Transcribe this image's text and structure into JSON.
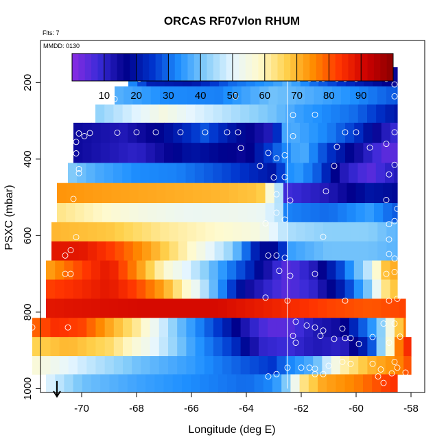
{
  "chart_data": {
    "type": "heatmap",
    "title": "ORCAS RF07vlon RHUM",
    "annotations": {
      "flts": "Flts: 7",
      "mmdd": "MMDD: 0130"
    },
    "xlabel": "Longitude (deg E)",
    "ylabel": "PSXC (mbar)",
    "xlim": [
      -71.5,
      -57.5
    ],
    "ylim": [
      1010,
      90
    ],
    "x_ticks": [
      -70,
      -68,
      -66,
      -64,
      -62,
      -60,
      -58
    ],
    "y_ticks": [
      200,
      400,
      600,
      800,
      1000
    ],
    "colorbar": {
      "range": [
        0,
        100
      ],
      "ticks": [
        10,
        20,
        30,
        40,
        50,
        60,
        70,
        80,
        90
      ],
      "stops": [
        "#8a2be2",
        "#3a2bd8",
        "#00008b",
        "#0033cc",
        "#1e90ff",
        "#87cefa",
        "#e6f6ff",
        "#fffacd",
        "#ffd24d",
        "#ff8c00",
        "#ff3300",
        "#cc0000",
        "#8b0000"
      ]
    },
    "vertical_marker_lon": -62.5,
    "marker_arrow_lon": -70.9,
    "bin_width_deg": 0.33,
    "rows": [
      {
        "p": 185,
        "lon_start": -68.3,
        "lon_end": -58.5,
        "anchors": [
          [
            -68.3,
            35
          ],
          [
            -67.5,
            22
          ],
          [
            -66,
            20
          ],
          [
            -64.5,
            30
          ],
          [
            -63,
            35
          ],
          [
            -62.5,
            38
          ],
          [
            -61.5,
            30
          ],
          [
            -60,
            22
          ],
          [
            -58.5,
            15
          ]
        ]
      },
      {
        "p": 235,
        "lon_start": -68.8,
        "lon_end": -58.5,
        "anchors": [
          [
            -68.8,
            38
          ],
          [
            -67,
            33
          ],
          [
            -65,
            32
          ],
          [
            -63,
            40
          ],
          [
            -62,
            38
          ],
          [
            -60,
            33
          ],
          [
            -58.5,
            28
          ]
        ]
      },
      {
        "p": 280,
        "lon_start": -69.5,
        "lon_end": -58.5,
        "anchors": [
          [
            -69.5,
            42
          ],
          [
            -68.5,
            47
          ],
          [
            -67,
            55
          ],
          [
            -66,
            50
          ],
          [
            -64.5,
            45
          ],
          [
            -63,
            40
          ],
          [
            -62,
            35
          ],
          [
            -60,
            30
          ],
          [
            -58.5,
            20
          ]
        ]
      },
      {
        "p": 330,
        "lon_start": -70.3,
        "lon_end": -58.5,
        "anchors": [
          [
            -70.3,
            15
          ],
          [
            -68.5,
            12
          ],
          [
            -67,
            18
          ],
          [
            -65.5,
            28
          ],
          [
            -64.5,
            20
          ],
          [
            -63.2,
            12
          ],
          [
            -62.5,
            38
          ],
          [
            -61,
            32
          ],
          [
            -60,
            25
          ],
          [
            -59,
            12
          ],
          [
            -58.5,
            8
          ]
        ]
      },
      {
        "p": 385,
        "lon_start": -70.3,
        "lon_end": -58.5,
        "anchors": [
          [
            -70.3,
            15
          ],
          [
            -68,
            10
          ],
          [
            -66,
            20
          ],
          [
            -64,
            15
          ],
          [
            -63,
            28
          ],
          [
            -62,
            38
          ],
          [
            -61,
            25
          ],
          [
            -60,
            15
          ],
          [
            -59,
            5
          ],
          [
            -58.5,
            5
          ]
        ]
      },
      {
        "p": 435,
        "lon_start": -70.5,
        "lon_end": -58.5,
        "anchors": [
          [
            -70.5,
            42
          ],
          [
            -69.5,
            37
          ],
          [
            -68,
            33
          ],
          [
            -66.5,
            32
          ],
          [
            -64.5,
            26
          ],
          [
            -63,
            20
          ],
          [
            -62.3,
            36
          ],
          [
            -61.5,
            30
          ],
          [
            -60.5,
            12
          ],
          [
            -59.5,
            5
          ],
          [
            -58.5,
            12
          ]
        ]
      },
      {
        "p": 490,
        "lon_start": -70.9,
        "lon_end": -58.5,
        "anchors": [
          [
            -70.9,
            74
          ],
          [
            -68,
            72
          ],
          [
            -65,
            70
          ],
          [
            -63.5,
            68
          ],
          [
            -62.7,
            42
          ],
          [
            -62.5,
            8
          ],
          [
            -61,
            12
          ],
          [
            -59.5,
            20
          ],
          [
            -58.5,
            18
          ]
        ]
      },
      {
        "p": 540,
        "lon_start": -70.9,
        "lon_end": -58.5,
        "anchors": [
          [
            -70.9,
            63
          ],
          [
            -68,
            55
          ],
          [
            -66,
            52
          ],
          [
            -64.5,
            53
          ],
          [
            -63.5,
            52
          ],
          [
            -62.7,
            45
          ],
          [
            -62.5,
            32
          ],
          [
            -61,
            30
          ],
          [
            -59.5,
            35
          ],
          [
            -58.5,
            28
          ]
        ]
      },
      {
        "p": 590,
        "lon_start": -71.1,
        "lon_end": -58.5,
        "anchors": [
          [
            -71.1,
            70
          ],
          [
            -69,
            68
          ],
          [
            -67,
            62
          ],
          [
            -65,
            58
          ],
          [
            -63.5,
            55
          ],
          [
            -62.5,
            45
          ],
          [
            -61,
            42
          ],
          [
            -59.5,
            42
          ],
          [
            -58.5,
            38
          ]
        ]
      },
      {
        "p": 640,
        "lon_start": -71.1,
        "lon_end": -58.5,
        "anchors": [
          [
            -71.1,
            88
          ],
          [
            -70,
            88
          ],
          [
            -68.8,
            82
          ],
          [
            -67.5,
            72
          ],
          [
            -66,
            58
          ],
          [
            -64.5,
            42
          ],
          [
            -63.5,
            18
          ],
          [
            -62.8,
            18
          ],
          [
            -62.5,
            35
          ],
          [
            -61,
            40
          ],
          [
            -59.5,
            40
          ],
          [
            -58.5,
            38
          ]
        ]
      },
      {
        "p": 690,
        "lon_start": -71.3,
        "lon_end": -58.5,
        "anchors": [
          [
            -71.3,
            72
          ],
          [
            -70,
            82
          ],
          [
            -69,
            88
          ],
          [
            -68,
            75
          ],
          [
            -67,
            58
          ],
          [
            -66,
            48
          ],
          [
            -65,
            36
          ],
          [
            -64,
            25
          ],
          [
            -63,
            10
          ],
          [
            -62.5,
            5
          ],
          [
            -61.5,
            12
          ],
          [
            -60.5,
            28
          ],
          [
            -59.5,
            48
          ],
          [
            -59,
            68
          ],
          [
            -58.5,
            72
          ]
        ]
      },
      {
        "p": 740,
        "lon_start": -71.3,
        "lon_end": -58.5,
        "anchors": [
          [
            -71.3,
            82
          ],
          [
            -70,
            85
          ],
          [
            -69,
            88
          ],
          [
            -68,
            82
          ],
          [
            -67,
            72
          ],
          [
            -66,
            55
          ],
          [
            -65,
            35
          ],
          [
            -64,
            15
          ],
          [
            -63,
            8
          ],
          [
            -62.5,
            5
          ],
          [
            -61.5,
            10
          ],
          [
            -60.5,
            22
          ],
          [
            -59.5,
            42
          ],
          [
            -59,
            62
          ],
          [
            -58.5,
            70
          ]
        ]
      },
      {
        "p": 790,
        "lon_start": -71.3,
        "lon_end": -58.2,
        "anchors": [
          [
            -71.3,
            88
          ],
          [
            -68,
            90
          ],
          [
            -65,
            90
          ],
          [
            -62.5,
            85
          ],
          [
            -61,
            82
          ],
          [
            -59.5,
            80
          ],
          [
            -58.2,
            82
          ]
        ]
      },
      {
        "p": 840,
        "lon_start": -71.8,
        "lon_end": -58.2,
        "anchors": [
          [
            -71.8,
            78
          ],
          [
            -71,
            84
          ],
          [
            -70,
            82
          ],
          [
            -69,
            72
          ],
          [
            -68,
            62
          ],
          [
            -66.5,
            40
          ],
          [
            -65,
            25
          ],
          [
            -64,
            12
          ],
          [
            -63.2,
            5
          ],
          [
            -62.5,
            5
          ],
          [
            -61.5,
            12
          ],
          [
            -60.5,
            15
          ],
          [
            -59.8,
            28
          ],
          [
            -59.2,
            38
          ],
          [
            -58.5,
            65
          ],
          [
            -58.2,
            78
          ]
        ]
      },
      {
        "p": 890,
        "lon_start": -71.8,
        "lon_end": -58.0,
        "anchors": [
          [
            -71.8,
            66
          ],
          [
            -70.5,
            70
          ],
          [
            -69,
            65
          ],
          [
            -67.5,
            52
          ],
          [
            -66,
            36
          ],
          [
            -64.5,
            25
          ],
          [
            -63.5,
            10
          ],
          [
            -62.5,
            8
          ],
          [
            -61.5,
            12
          ],
          [
            -60.5,
            10
          ],
          [
            -59.5,
            25
          ],
          [
            -58.8,
            55
          ],
          [
            -58.5,
            75
          ],
          [
            -58,
            88
          ]
        ]
      },
      {
        "p": 940,
        "lon_start": -71.8,
        "lon_end": -58.0,
        "anchors": [
          [
            -71.8,
            57
          ],
          [
            -70,
            48
          ],
          [
            -68,
            40
          ],
          [
            -66,
            35
          ],
          [
            -64,
            28
          ],
          [
            -63,
            25
          ],
          [
            -62.5,
            32
          ],
          [
            -61.5,
            38
          ],
          [
            -60.5,
            60
          ],
          [
            -59.5,
            70
          ],
          [
            -58.5,
            75
          ],
          [
            -58,
            82
          ]
        ]
      },
      {
        "p": 985,
        "lon_start": -71.3,
        "lon_end": -58.5,
        "anchors": [
          [
            -71.3,
            50
          ],
          [
            -70,
            40
          ],
          [
            -68,
            36
          ],
          [
            -66,
            33
          ],
          [
            -64,
            30
          ],
          [
            -63,
            33
          ],
          [
            -62.5,
            42
          ],
          [
            -62,
            62
          ],
          [
            -61.2,
            72
          ],
          [
            -60,
            76
          ],
          [
            -59,
            82
          ],
          [
            -58.5,
            84
          ]
        ]
      }
    ],
    "obs_points": [
      [
        -67.9,
        190
      ],
      [
        -66.3,
        182
      ],
      [
        -65.5,
        183
      ],
      [
        -64.9,
        184
      ],
      [
        -62.1,
        190
      ],
      [
        -61.7,
        190
      ],
      [
        -61.4,
        190
      ],
      [
        -61.2,
        190
      ],
      [
        -60.7,
        190
      ],
      [
        -60.4,
        190
      ],
      [
        -60,
        190
      ],
      [
        -58.9,
        190
      ],
      [
        -58.6,
        205
      ],
      [
        -68.8,
        243
      ],
      [
        -64.4,
        236
      ],
      [
        -58.6,
        236
      ],
      [
        -62.3,
        285
      ],
      [
        -61.5,
        284
      ],
      [
        -70.1,
        333
      ],
      [
        -69.9,
        340
      ],
      [
        -69.7,
        332
      ],
      [
        -68.7,
        331
      ],
      [
        -68,
        330
      ],
      [
        -67.3,
        330
      ],
      [
        -66.4,
        330
      ],
      [
        -65.5,
        330
      ],
      [
        -64.7,
        330
      ],
      [
        -64.3,
        330
      ],
      [
        -62.3,
        340
      ],
      [
        -60.4,
        330
      ],
      [
        -60,
        330
      ],
      [
        -58.6,
        330
      ],
      [
        -70.2,
        355
      ],
      [
        -70.2,
        385
      ],
      [
        -64.2,
        371
      ],
      [
        -63.2,
        384
      ],
      [
        -62.9,
        398
      ],
      [
        -62.6,
        390
      ],
      [
        -60.7,
        368
      ],
      [
        -59.5,
        370
      ],
      [
        -58.9,
        360
      ],
      [
        -70.1,
        426
      ],
      [
        -70.1,
        437
      ],
      [
        -63.5,
        418
      ],
      [
        -63,
        448
      ],
      [
        -62.6,
        447
      ],
      [
        -60.8,
        418
      ],
      [
        -58.6,
        415
      ],
      [
        -58.8,
        440
      ],
      [
        -70.3,
        504
      ],
      [
        -62.9,
        492
      ],
      [
        -62.4,
        508
      ],
      [
        -61.1,
        484
      ],
      [
        -58.9,
        507
      ],
      [
        -58.5,
        530
      ],
      [
        -62.9,
        540
      ],
      [
        -62.6,
        558
      ],
      [
        -63.3,
        568
      ],
      [
        -58.8,
        570
      ],
      [
        -58.6,
        562
      ],
      [
        -70.2,
        604
      ],
      [
        -61.2,
        603
      ],
      [
        -58.8,
        610
      ],
      [
        -70.4,
        638
      ],
      [
        -70.6,
        652
      ],
      [
        -62.9,
        652
      ],
      [
        -62.6,
        658
      ],
      [
        -63.2,
        652
      ],
      [
        -58.8,
        648
      ],
      [
        -58.6,
        660
      ],
      [
        -70.6,
        700
      ],
      [
        -70.4,
        700
      ],
      [
        -62.8,
        692
      ],
      [
        -62.4,
        705
      ],
      [
        -61.5,
        700
      ],
      [
        -58.9,
        700
      ],
      [
        -58.6,
        695
      ],
      [
        -63.3,
        762
      ],
      [
        -62.5,
        770
      ],
      [
        -60.4,
        770
      ],
      [
        -58.8,
        770
      ],
      [
        -58.5,
        765
      ],
      [
        -71.8,
        840
      ],
      [
        -70.5,
        840
      ],
      [
        -62.2,
        825
      ],
      [
        -61.8,
        835
      ],
      [
        -61.5,
        840
      ],
      [
        -61.2,
        848
      ],
      [
        -60.5,
        843
      ],
      [
        -59,
        830
      ],
      [
        -58.6,
        830
      ],
      [
        -62.2,
        880
      ],
      [
        -62.3,
        862
      ],
      [
        -61.3,
        862
      ],
      [
        -60.8,
        870
      ],
      [
        -60.4,
        868
      ],
      [
        -60.2,
        868
      ],
      [
        -59.4,
        865
      ],
      [
        -59.9,
        883
      ],
      [
        -58.8,
        880
      ],
      [
        -58.4,
        864
      ],
      [
        -62.5,
        945
      ],
      [
        -62,
        945
      ],
      [
        -61.7,
        945
      ],
      [
        -61.5,
        948
      ],
      [
        -61,
        940
      ],
      [
        -60.5,
        930
      ],
      [
        -60.2,
        935
      ],
      [
        -59.4,
        935
      ],
      [
        -59.1,
        950
      ],
      [
        -58.6,
        930
      ],
      [
        -58.5,
        945
      ],
      [
        -63.2,
        968
      ],
      [
        -62.9,
        962
      ],
      [
        -61.5,
        962
      ],
      [
        -61.2,
        962
      ],
      [
        -59.2,
        968
      ],
      [
        -59,
        985
      ],
      [
        -58.7,
        960
      ],
      [
        -58.2,
        958
      ]
    ]
  }
}
